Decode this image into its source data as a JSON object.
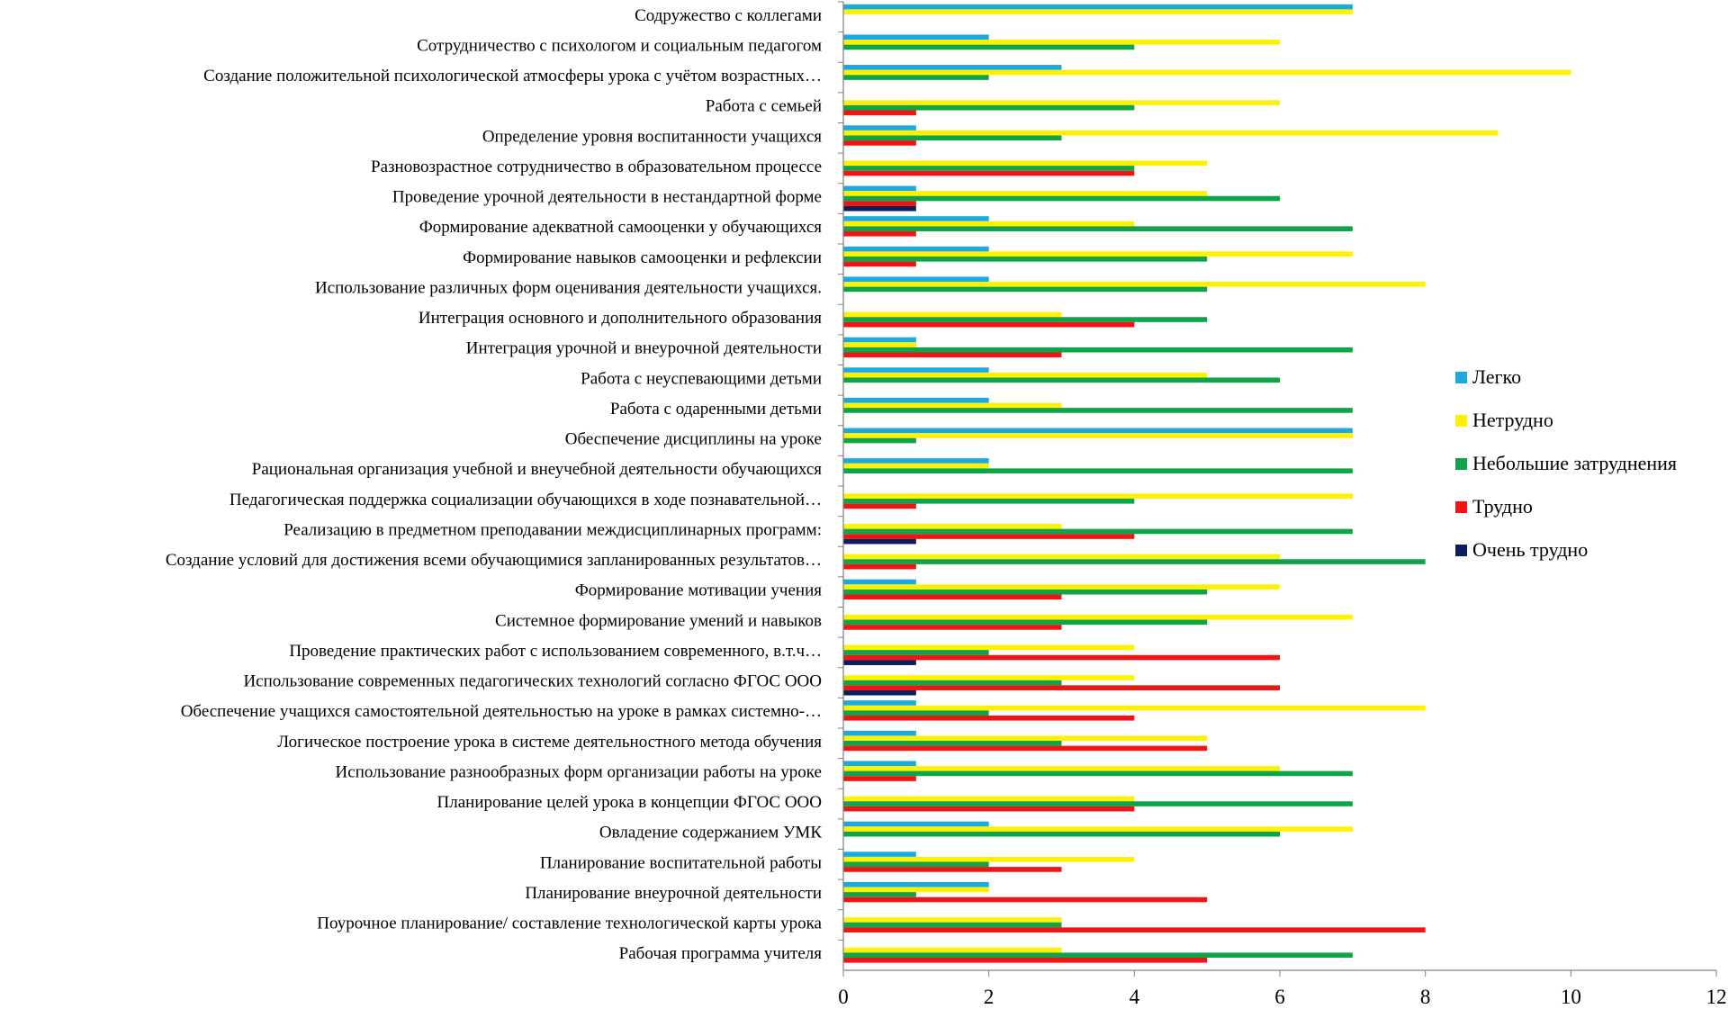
{
  "chart_data": {
    "type": "bar",
    "orientation": "horizontal",
    "title": "",
    "xlabel": "",
    "ylabel": "",
    "xlim": [
      0,
      12
    ],
    "xticks": [
      0,
      2,
      4,
      6,
      8,
      10,
      12
    ],
    "grid": false,
    "legend_position": "right",
    "categories": [
      "Содружество с коллегами",
      "Сотрудничество с психологом и социальным педагогом",
      "Создание положительной психологической атмосферы урока с учётом возрастных…",
      "Работа с семьей",
      "Определение уровня воспитанности учащихся",
      "Разновозрастное сотрудничество в образовательном процессе",
      "Проведение урочной деятельности в нестандартной форме",
      "Формирование адекватной самооценки у обучающихся",
      "Формирование навыков самооценки и рефлексии",
      "Использование различных форм оценивания деятельности учащихся.",
      "Интеграция основного и дополнительного образования",
      "Интеграция урочной и внеурочной деятельности",
      "Работа с неуспевающими детьми",
      "Работа с одаренными детьми",
      "Обеспечение дисциплины на уроке",
      "Рациональная организация учебной и внеучебной деятельности обучающихся",
      "Педагогическая поддержка социализации обучающихся в ходе познавательной…",
      "Реализацию в предметном преподавании междисциплинарных программ:",
      "Создание условий для достижения всеми обучающимися запланированных результатов…",
      "Формирование мотивации учения",
      "Системное формирование умений и навыков",
      "Проведение практических работ с использованием современного, в.т.ч…",
      "Использование современных педагогических технологий согласно ФГОС ООО",
      "Обеспечение учащихся самостоятельной деятельностью на уроке в рамках системно-…",
      "Логическое построение урока в системе деятельностного метода обучения",
      "Использование разнообразных форм организации работы на уроке",
      "Планирование целей урока в концепции ФГОС ООО",
      "Овладение содержанием УМК",
      "Планирование воспитательной работы",
      "Планирование внеурочной деятельности",
      "Поурочное планирование/ составление технологической карты урока",
      "Рабочая программа учителя"
    ],
    "series": [
      {
        "name": "Легко",
        "color": "#1BA9E1",
        "values": [
          7,
          2,
          3,
          0,
          1,
          0,
          1,
          2,
          2,
          2,
          0,
          1,
          2,
          2,
          7,
          2,
          0,
          0,
          0,
          1,
          0,
          0,
          0,
          1,
          1,
          1,
          0,
          2,
          1,
          2,
          0,
          0
        ]
      },
      {
        "name": "Нетрудно",
        "color": "#FFF200",
        "values": [
          7,
          6,
          10,
          6,
          9,
          5,
          5,
          4,
          7,
          8,
          3,
          1,
          5,
          3,
          7,
          2,
          7,
          3,
          6,
          6,
          7,
          4,
          4,
          8,
          5,
          6,
          4,
          7,
          4,
          2,
          3,
          3
        ]
      },
      {
        "name": "Небольшие затруднения",
        "color": "#0FA34A",
        "values": [
          0,
          4,
          2,
          4,
          3,
          4,
          6,
          7,
          5,
          5,
          5,
          7,
          6,
          7,
          1,
          7,
          4,
          7,
          8,
          5,
          5,
          2,
          3,
          2,
          3,
          7,
          7,
          6,
          2,
          1,
          3,
          7
        ]
      },
      {
        "name": "Трудно",
        "color": "#F01414",
        "values": [
          0,
          0,
          0,
          1,
          1,
          4,
          1,
          1,
          1,
          0,
          4,
          3,
          0,
          0,
          0,
          0,
          1,
          4,
          1,
          3,
          3,
          6,
          6,
          4,
          5,
          1,
          4,
          0,
          3,
          5,
          8,
          5
        ]
      },
      {
        "name": "Очень трудно",
        "color": "#0B1F5C",
        "values": [
          0,
          0,
          0,
          0,
          0,
          0,
          1,
          0,
          0,
          0,
          0,
          0,
          0,
          0,
          0,
          0,
          0,
          1,
          0,
          0,
          0,
          1,
          1,
          0,
          0,
          0,
          0,
          0,
          0,
          0,
          0,
          0
        ]
      }
    ]
  }
}
